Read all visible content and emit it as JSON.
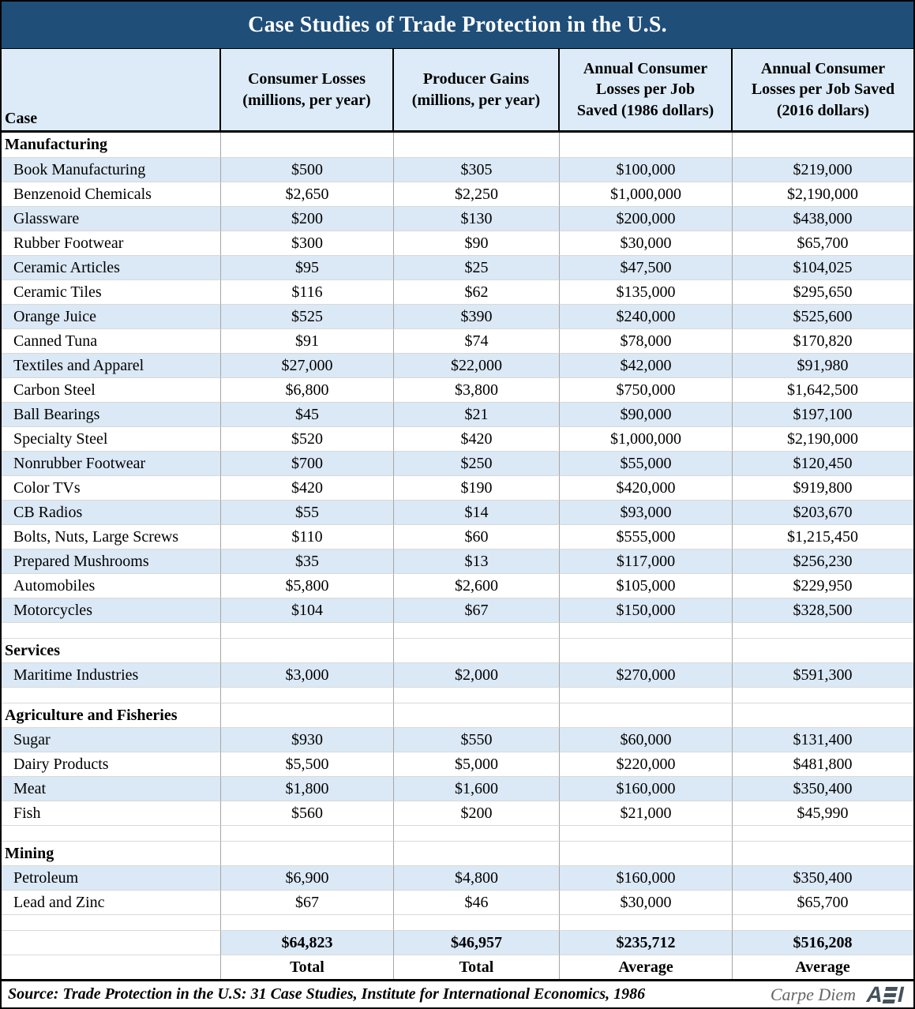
{
  "title": "Case Studies of Trade Protection in the U.S.",
  "columns": [
    "Case",
    "Consumer Losses\n(millions, per year)",
    "Producer Gains\n(millions, per year)",
    "Annual Consumer\nLosses per Job\nSaved (1986 dollars)",
    "Annual Consumer\nLosses per Job Saved\n(2016 dollars)"
  ],
  "rows": [
    {
      "type": "section",
      "label": "Manufacturing"
    },
    {
      "type": "data",
      "case": "Book Manufacturing",
      "shade": true,
      "values": [
        "$500",
        "$305",
        "$100,000",
        "$219,000"
      ]
    },
    {
      "type": "data",
      "case": "Benzenoid Chemicals",
      "shade": false,
      "values": [
        "$2,650",
        "$2,250",
        "$1,000,000",
        "$2,190,000"
      ]
    },
    {
      "type": "data",
      "case": "Glassware",
      "shade": true,
      "values": [
        "$200",
        "$130",
        "$200,000",
        "$438,000"
      ]
    },
    {
      "type": "data",
      "case": "Rubber Footwear",
      "shade": false,
      "values": [
        "$300",
        "$90",
        "$30,000",
        "$65,700"
      ]
    },
    {
      "type": "data",
      "case": "Ceramic Articles",
      "shade": true,
      "values": [
        "$95",
        "$25",
        "$47,500",
        "$104,025"
      ]
    },
    {
      "type": "data",
      "case": "Ceramic Tiles",
      "shade": false,
      "values": [
        "$116",
        "$62",
        "$135,000",
        "$295,650"
      ]
    },
    {
      "type": "data",
      "case": "Orange Juice",
      "shade": true,
      "values": [
        "$525",
        "$390",
        "$240,000",
        "$525,600"
      ]
    },
    {
      "type": "data",
      "case": "Canned Tuna",
      "shade": false,
      "values": [
        "$91",
        "$74",
        "$78,000",
        "$170,820"
      ]
    },
    {
      "type": "data",
      "case": "Textiles and Apparel",
      "shade": true,
      "values": [
        "$27,000",
        "$22,000",
        "$42,000",
        "$91,980"
      ]
    },
    {
      "type": "data",
      "case": "Carbon Steel",
      "shade": false,
      "values": [
        "$6,800",
        "$3,800",
        "$750,000",
        "$1,642,500"
      ]
    },
    {
      "type": "data",
      "case": "Ball Bearings",
      "shade": true,
      "values": [
        "$45",
        "$21",
        "$90,000",
        "$197,100"
      ]
    },
    {
      "type": "data",
      "case": "Specialty Steel",
      "shade": false,
      "values": [
        "$520",
        "$420",
        "$1,000,000",
        "$2,190,000"
      ]
    },
    {
      "type": "data",
      "case": "Nonrubber Footwear",
      "shade": true,
      "values": [
        "$700",
        "$250",
        "$55,000",
        "$120,450"
      ]
    },
    {
      "type": "data",
      "case": "Color TVs",
      "shade": false,
      "values": [
        "$420",
        "$190",
        "$420,000",
        "$919,800"
      ]
    },
    {
      "type": "data",
      "case": "CB Radios",
      "shade": true,
      "values": [
        "$55",
        "$14",
        "$93,000",
        "$203,670"
      ]
    },
    {
      "type": "data",
      "case": "Bolts, Nuts, Large Screws",
      "shade": false,
      "values": [
        "$110",
        "$60",
        "$555,000",
        "$1,215,450"
      ]
    },
    {
      "type": "data",
      "case": "Prepared Mushrooms",
      "shade": true,
      "values": [
        "$35",
        "$13",
        "$117,000",
        "$256,230"
      ]
    },
    {
      "type": "data",
      "case": "Automobiles",
      "shade": false,
      "values": [
        "$5,800",
        "$2,600",
        "$105,000",
        "$229,950"
      ]
    },
    {
      "type": "data",
      "case": "Motorcycles",
      "shade": true,
      "values": [
        "$104",
        "$67",
        "$150,000",
        "$328,500"
      ]
    },
    {
      "type": "blank"
    },
    {
      "type": "section",
      "label": "Services"
    },
    {
      "type": "data",
      "case": "Maritime Industries",
      "shade": true,
      "values": [
        "$3,000",
        "$2,000",
        "$270,000",
        "$591,300"
      ]
    },
    {
      "type": "blank"
    },
    {
      "type": "section",
      "label": "Agriculture and Fisheries"
    },
    {
      "type": "data",
      "case": "Sugar",
      "shade": true,
      "values": [
        "$930",
        "$550",
        "$60,000",
        "$131,400"
      ]
    },
    {
      "type": "data",
      "case": "Dairy Products",
      "shade": false,
      "values": [
        "$5,500",
        "$5,000",
        "$220,000",
        "$481,800"
      ]
    },
    {
      "type": "data",
      "case": "Meat",
      "shade": true,
      "values": [
        "$1,800",
        "$1,600",
        "$160,000",
        "$350,400"
      ]
    },
    {
      "type": "data",
      "case": "Fish",
      "shade": false,
      "values": [
        "$560",
        "$200",
        "$21,000",
        "$45,990"
      ]
    },
    {
      "type": "blank"
    },
    {
      "type": "section",
      "label": "Mining"
    },
    {
      "type": "data",
      "case": "Petroleum",
      "shade": true,
      "values": [
        "$6,900",
        "$4,800",
        "$160,000",
        "$350,400"
      ]
    },
    {
      "type": "data",
      "case": "Lead and Zinc",
      "shade": false,
      "values": [
        "$67",
        "$46",
        "$30,000",
        "$65,700"
      ]
    },
    {
      "type": "blank"
    },
    {
      "type": "total",
      "values": [
        "$64,823",
        "$46,957",
        "$235,712",
        "$516,208"
      ]
    },
    {
      "type": "labels",
      "values": [
        "Total",
        "Total",
        "Average",
        "Average"
      ]
    }
  ],
  "footer": {
    "source": "Source: Trade Protection in the U.S: 31 Case Studies, Institute for International Economics, 1986",
    "credit": "Carpe Diem",
    "logo": "AEI"
  },
  "colors": {
    "title_bg": "#1f4e79",
    "title_text": "#ffffff",
    "header_bg": "#dcebf7",
    "row_stripe": "#dbe8f5",
    "border_black": "#000000",
    "divider_gray": "#a6a6a6",
    "logo_color": "#44525c"
  },
  "chart_data": {
    "type": "table",
    "title": "Case Studies of Trade Protection in the U.S.",
    "columns": [
      "Case",
      "Consumer Losses (millions, per year)",
      "Producer Gains (millions, per year)",
      "Annual Consumer Losses per Job Saved (1986 dollars)",
      "Annual Consumer Losses per Job Saved (2016 dollars)"
    ],
    "sections": [
      {
        "name": "Manufacturing",
        "rows": [
          {
            "case": "Book Manufacturing",
            "consumer_losses_millions": 500,
            "producer_gains_millions": 305,
            "loss_per_job_1986": 100000,
            "loss_per_job_2016": 219000
          },
          {
            "case": "Benzenoid Chemicals",
            "consumer_losses_millions": 2650,
            "producer_gains_millions": 2250,
            "loss_per_job_1986": 1000000,
            "loss_per_job_2016": 2190000
          },
          {
            "case": "Glassware",
            "consumer_losses_millions": 200,
            "producer_gains_millions": 130,
            "loss_per_job_1986": 200000,
            "loss_per_job_2016": 438000
          },
          {
            "case": "Rubber Footwear",
            "consumer_losses_millions": 300,
            "producer_gains_millions": 90,
            "loss_per_job_1986": 30000,
            "loss_per_job_2016": 65700
          },
          {
            "case": "Ceramic Articles",
            "consumer_losses_millions": 95,
            "producer_gains_millions": 25,
            "loss_per_job_1986": 47500,
            "loss_per_job_2016": 104025
          },
          {
            "case": "Ceramic Tiles",
            "consumer_losses_millions": 116,
            "producer_gains_millions": 62,
            "loss_per_job_1986": 135000,
            "loss_per_job_2016": 295650
          },
          {
            "case": "Orange Juice",
            "consumer_losses_millions": 525,
            "producer_gains_millions": 390,
            "loss_per_job_1986": 240000,
            "loss_per_job_2016": 525600
          },
          {
            "case": "Canned Tuna",
            "consumer_losses_millions": 91,
            "producer_gains_millions": 74,
            "loss_per_job_1986": 78000,
            "loss_per_job_2016": 170820
          },
          {
            "case": "Textiles and Apparel",
            "consumer_losses_millions": 27000,
            "producer_gains_millions": 22000,
            "loss_per_job_1986": 42000,
            "loss_per_job_2016": 91980
          },
          {
            "case": "Carbon Steel",
            "consumer_losses_millions": 6800,
            "producer_gains_millions": 3800,
            "loss_per_job_1986": 750000,
            "loss_per_job_2016": 1642500
          },
          {
            "case": "Ball Bearings",
            "consumer_losses_millions": 45,
            "producer_gains_millions": 21,
            "loss_per_job_1986": 90000,
            "loss_per_job_2016": 197100
          },
          {
            "case": "Specialty Steel",
            "consumer_losses_millions": 520,
            "producer_gains_millions": 420,
            "loss_per_job_1986": 1000000,
            "loss_per_job_2016": 2190000
          },
          {
            "case": "Nonrubber Footwear",
            "consumer_losses_millions": 700,
            "producer_gains_millions": 250,
            "loss_per_job_1986": 55000,
            "loss_per_job_2016": 120450
          },
          {
            "case": "Color TVs",
            "consumer_losses_millions": 420,
            "producer_gains_millions": 190,
            "loss_per_job_1986": 420000,
            "loss_per_job_2016": 919800
          },
          {
            "case": "CB Radios",
            "consumer_losses_millions": 55,
            "producer_gains_millions": 14,
            "loss_per_job_1986": 93000,
            "loss_per_job_2016": 203670
          },
          {
            "case": "Bolts, Nuts, Large Screws",
            "consumer_losses_millions": 110,
            "producer_gains_millions": 60,
            "loss_per_job_1986": 555000,
            "loss_per_job_2016": 1215450
          },
          {
            "case": "Prepared Mushrooms",
            "consumer_losses_millions": 35,
            "producer_gains_millions": 13,
            "loss_per_job_1986": 117000,
            "loss_per_job_2016": 256230
          },
          {
            "case": "Automobiles",
            "consumer_losses_millions": 5800,
            "producer_gains_millions": 2600,
            "loss_per_job_1986": 105000,
            "loss_per_job_2016": 229950
          },
          {
            "case": "Motorcycles",
            "consumer_losses_millions": 104,
            "producer_gains_millions": 67,
            "loss_per_job_1986": 150000,
            "loss_per_job_2016": 328500
          }
        ]
      },
      {
        "name": "Services",
        "rows": [
          {
            "case": "Maritime Industries",
            "consumer_losses_millions": 3000,
            "producer_gains_millions": 2000,
            "loss_per_job_1986": 270000,
            "loss_per_job_2016": 591300
          }
        ]
      },
      {
        "name": "Agriculture and Fisheries",
        "rows": [
          {
            "case": "Sugar",
            "consumer_losses_millions": 930,
            "producer_gains_millions": 550,
            "loss_per_job_1986": 60000,
            "loss_per_job_2016": 131400
          },
          {
            "case": "Dairy Products",
            "consumer_losses_millions": 5500,
            "producer_gains_millions": 5000,
            "loss_per_job_1986": 220000,
            "loss_per_job_2016": 481800
          },
          {
            "case": "Meat",
            "consumer_losses_millions": 1800,
            "producer_gains_millions": 1600,
            "loss_per_job_1986": 160000,
            "loss_per_job_2016": 350400
          },
          {
            "case": "Fish",
            "consumer_losses_millions": 560,
            "producer_gains_millions": 200,
            "loss_per_job_1986": 21000,
            "loss_per_job_2016": 45990
          }
        ]
      },
      {
        "name": "Mining",
        "rows": [
          {
            "case": "Petroleum",
            "consumer_losses_millions": 6900,
            "producer_gains_millions": 4800,
            "loss_per_job_1986": 160000,
            "loss_per_job_2016": 350400
          },
          {
            "case": "Lead and Zinc",
            "consumer_losses_millions": 67,
            "producer_gains_millions": 46,
            "loss_per_job_1986": 30000,
            "loss_per_job_2016": 65700
          }
        ]
      }
    ],
    "summary": {
      "consumer_losses_total_millions": 64823,
      "producer_gains_total_millions": 46957,
      "loss_per_job_1986_average": 235712,
      "loss_per_job_2016_average": 516208,
      "summary_labels": [
        "Total",
        "Total",
        "Average",
        "Average"
      ]
    },
    "source": "Source: Trade Protection in the U.S: 31 Case Studies, Institute for International Economics, 1986"
  }
}
